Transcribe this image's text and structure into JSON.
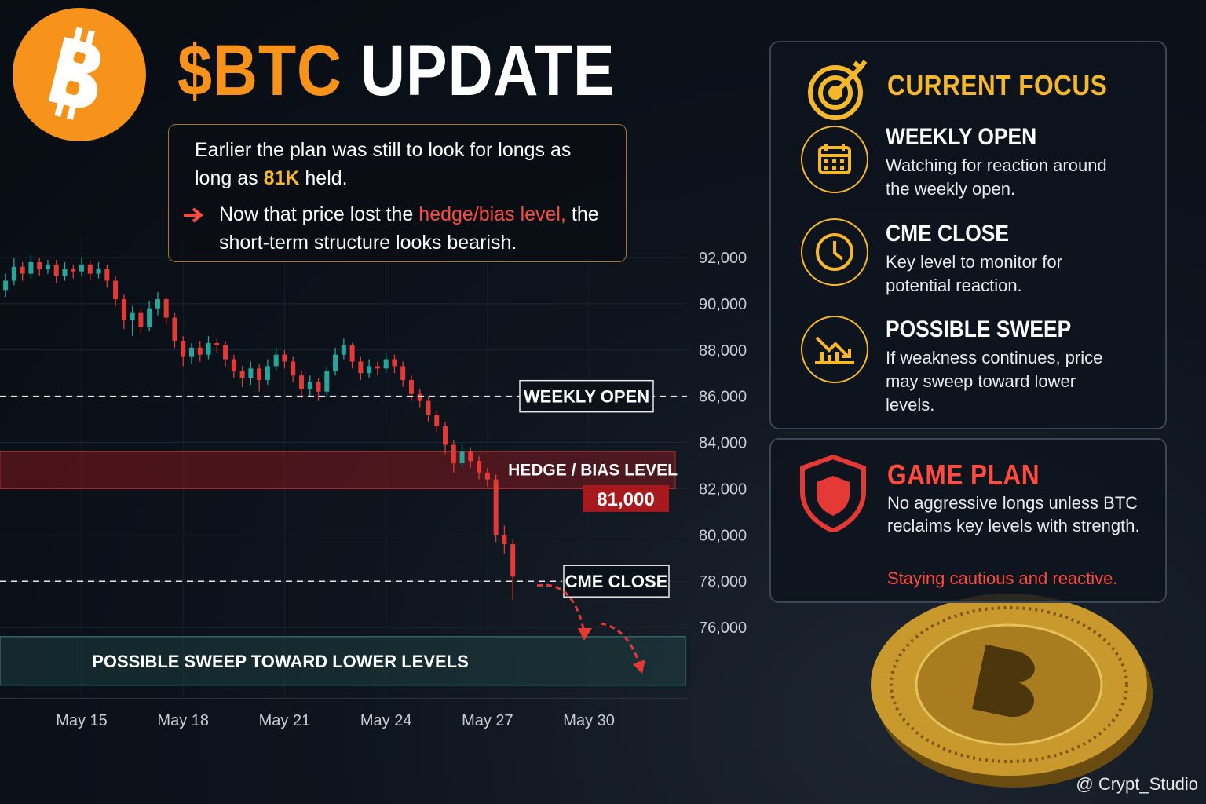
{
  "header": {
    "title": [
      "$BTC",
      "UPDATE"
    ]
  },
  "note": {
    "paragraphs": [
      [
        "Earlier the plan was still to look for longs as long as ",
        "81K",
        " held."
      ],
      [
        "Now that price lost the ",
        "hedge/bias level,",
        " the short-term structure looks bearish."
      ]
    ]
  },
  "focus": {
    "title": "CURRENT FOCUS",
    "items": [
      {
        "title": "WEEKLY OPEN",
        "text": "Watching for reaction around the weekly open."
      },
      {
        "title": "CME CLOSE",
        "text": "Key level to monitor for potential reaction."
      },
      {
        "title": "POSSIBLE SWEEP",
        "text": "If weakness continues, price may sweep toward lower levels."
      }
    ]
  },
  "game_plan": {
    "title": "GAME PLAN",
    "text": "No aggressive longs unless BTC reclaims key levels with strength.",
    "emphasis": "Staying cautious and reactive."
  },
  "credit": "@ Crypt_Studio",
  "chart_data": {
    "type": "candlestick",
    "x": [
      12.75,
      13,
      13.25,
      13.5,
      13.75,
      14,
      14.25,
      14.5,
      14.75,
      15,
      15.25,
      15.5,
      15.75,
      16,
      16.25,
      16.5,
      16.75,
      17,
      17.25,
      17.5,
      17.75,
      18,
      18.25,
      18.5,
      18.75,
      19,
      19.25,
      19.5,
      19.75,
      20,
      20.25,
      20.5,
      20.75,
      21,
      21.25,
      21.5,
      21.75,
      22,
      22.25,
      22.5,
      22.75,
      23,
      23.25,
      23.5,
      23.75,
      24,
      24.25,
      24.5,
      24.75,
      25,
      25.25,
      25.5,
      25.75,
      26,
      26.25,
      26.5,
      26.75,
      27,
      27.25,
      27.5,
      27.75
    ],
    "open": [
      90600,
      91000,
      91600,
      91300,
      91800,
      91500,
      91700,
      91200,
      91500,
      91400,
      91700,
      91300,
      91500,
      91000,
      90200,
      89300,
      89600,
      89000,
      89800,
      90200,
      89400,
      88400,
      87700,
      88100,
      87800,
      88300,
      88200,
      87600,
      87100,
      86800,
      87200,
      86700,
      87300,
      87800,
      87500,
      86900,
      86300,
      86600,
      86200,
      87100,
      87800,
      88200,
      87500,
      87000,
      87300,
      87200,
      87600,
      87300,
      86700,
      86100,
      85800,
      85200,
      84700,
      83900,
      83100,
      83600,
      83200,
      82700,
      82400,
      80000,
      79600
    ],
    "high": [
      91300,
      92000,
      91800,
      92100,
      92000,
      91900,
      91900,
      91800,
      91700,
      92000,
      91900,
      91800,
      91700,
      91200,
      90400,
      89900,
      89800,
      90100,
      90500,
      90300,
      89600,
      88600,
      88300,
      88400,
      88600,
      88500,
      88400,
      87800,
      87300,
      87500,
      87400,
      87600,
      88100,
      88000,
      87700,
      87100,
      86900,
      86800,
      87300,
      88100,
      88500,
      88300,
      87700,
      87600,
      87500,
      87900,
      87800,
      87500,
      86900,
      86300,
      86000,
      85400,
      84900,
      84100,
      83900,
      83800,
      83400,
      82900,
      82600,
      80400,
      79800
    ],
    "low": [
      90300,
      90800,
      91000,
      91100,
      91200,
      91300,
      90900,
      91000,
      91100,
      91200,
      91000,
      91100,
      90700,
      89900,
      88900,
      88600,
      88700,
      88800,
      89500,
      89100,
      88100,
      87300,
      87400,
      87500,
      87600,
      87900,
      87300,
      86800,
      86400,
      86500,
      86200,
      86500,
      87100,
      87200,
      86600,
      85900,
      86000,
      85800,
      86000,
      86900,
      87600,
      87200,
      86700,
      86800,
      86900,
      87000,
      87000,
      86400,
      85800,
      85500,
      84900,
      84400,
      83500,
      82700,
      82900,
      82900,
      82400,
      82100,
      79700,
      79200,
      77200
    ],
    "close": [
      91000,
      91600,
      91300,
      91800,
      91500,
      91700,
      91200,
      91500,
      91400,
      91700,
      91300,
      91500,
      91000,
      90200,
      89300,
      89600,
      89000,
      89800,
      90200,
      89400,
      88400,
      87700,
      88100,
      87800,
      88300,
      88200,
      87600,
      87100,
      86800,
      87200,
      86700,
      87300,
      87800,
      87500,
      86900,
      86300,
      86600,
      86200,
      87100,
      87800,
      88200,
      87500,
      87000,
      87300,
      87200,
      87600,
      87300,
      86700,
      86100,
      85800,
      85200,
      84700,
      83900,
      83100,
      83600,
      83200,
      82700,
      82400,
      80000,
      79600,
      78200
    ],
    "up_color": "#26a69a",
    "down_color": "#e53935",
    "xlim": [
      12.585,
      32.9
    ],
    "xticks": [
      {
        "value": 15,
        "label": "May 15"
      },
      {
        "value": 18,
        "label": "May 18"
      },
      {
        "value": 21,
        "label": "May 21"
      },
      {
        "value": 24,
        "label": "May 24"
      },
      {
        "value": 27,
        "label": "May 27"
      },
      {
        "value": 30,
        "label": "May 30"
      }
    ],
    "ylim": [
      73000,
      93000
    ],
    "yticks": [
      {
        "value": 76000,
        "label": "76,000"
      },
      {
        "value": 78000,
        "label": "78,000"
      },
      {
        "value": 80000,
        "label": "80,000"
      },
      {
        "value": 82000,
        "label": "82,000"
      },
      {
        "value": 84000,
        "label": "84,000"
      },
      {
        "value": 86000,
        "label": "86,000"
      },
      {
        "value": 88000,
        "label": "88,000"
      },
      {
        "value": 90000,
        "label": "90,000"
      },
      {
        "value": 92000,
        "label": "92,000"
      }
    ],
    "grid": true,
    "levels": [
      {
        "label": "WEEKLY OPEN",
        "value": 86000
      },
      {
        "label": "HEDGE / BIAS LEVEL",
        "value": 81000,
        "value_label": "81,000",
        "band": [
          82000,
          83600
        ]
      },
      {
        "label": "CME CLOSE",
        "value": 78000
      }
    ],
    "sweep_zone": {
      "label": "POSSIBLE SWEEP TOWARD LOWER LEVELS",
      "range": [
        73500,
        75600
      ]
    }
  }
}
